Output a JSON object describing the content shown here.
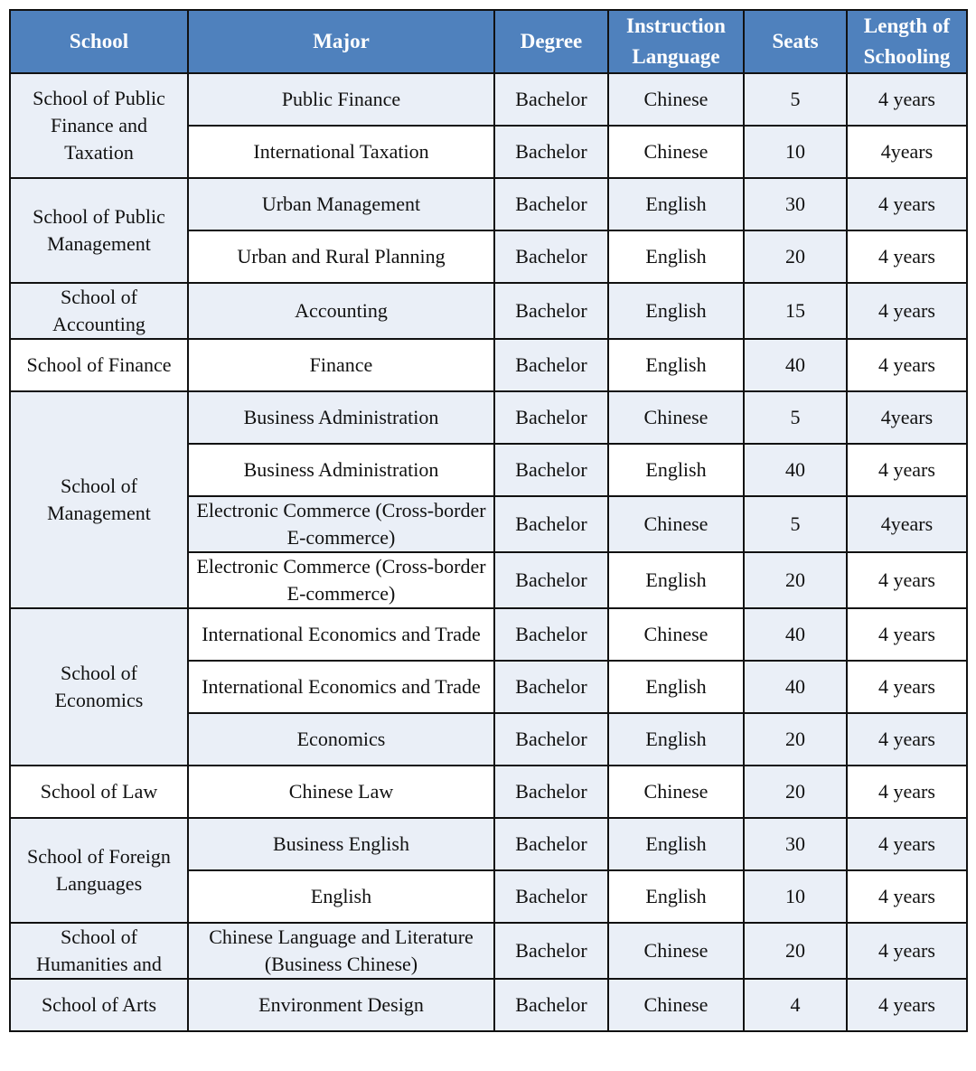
{
  "table": {
    "headers": [
      "School",
      "Major",
      "Degree",
      "Instruction Language",
      "Seats",
      "Length of Schooling"
    ],
    "groups": [
      {
        "school": "School of Public Finance and Taxation",
        "rows": [
          {
            "major": "Public Finance",
            "degree": "Bachelor",
            "language": "Chinese",
            "seats": "5",
            "length": "4 years"
          },
          {
            "major": "International Taxation",
            "degree": "Bachelor",
            "language": "Chinese",
            "seats": "10",
            "length": "4years"
          }
        ]
      },
      {
        "school": "School of Public Management",
        "rows": [
          {
            "major": "Urban Management",
            "degree": "Bachelor",
            "language": "English",
            "seats": "30",
            "length": "4 years"
          },
          {
            "major": "Urban and Rural Planning",
            "degree": "Bachelor",
            "language": "English",
            "seats": "20",
            "length": "4 years"
          }
        ]
      },
      {
        "school": "School of Accounting",
        "rows": [
          {
            "major": "Accounting",
            "degree": "Bachelor",
            "language": "English",
            "seats": "15",
            "length": "4 years"
          }
        ]
      },
      {
        "school": "School of Finance",
        "rows": [
          {
            "major": "Finance",
            "degree": "Bachelor",
            "language": "English",
            "seats": "40",
            "length": "4 years"
          }
        ]
      },
      {
        "school": "School of Management",
        "rows": [
          {
            "major": "Business Administration",
            "degree": "Bachelor",
            "language": "Chinese",
            "seats": "5",
            "length": "4years"
          },
          {
            "major": "Business Administration",
            "degree": "Bachelor",
            "language": "English",
            "seats": "40",
            "length": "4 years"
          },
          {
            "major": "Electronic Commerce (Cross-border E-commerce)",
            "degree": "Bachelor",
            "language": "Chinese",
            "seats": "5",
            "length": "4years"
          },
          {
            "major": "Electronic Commerce (Cross-border E-commerce)",
            "degree": "Bachelor",
            "language": "English",
            "seats": "20",
            "length": "4 years"
          }
        ]
      },
      {
        "school": "School of Economics",
        "rows": [
          {
            "major": "International Economics and Trade",
            "degree": "Bachelor",
            "language": "Chinese",
            "seats": "40",
            "length": "4 years"
          },
          {
            "major": "International Economics and Trade",
            "degree": "Bachelor",
            "language": "English",
            "seats": "40",
            "length": "4 years"
          },
          {
            "major": "Economics",
            "degree": "Bachelor",
            "language": "English",
            "seats": "20",
            "length": "4 years"
          }
        ]
      },
      {
        "school": "School of Law",
        "rows": [
          {
            "major": "Chinese Law",
            "degree": "Bachelor",
            "language": "Chinese",
            "seats": "20",
            "length": "4 years"
          }
        ]
      },
      {
        "school": "School of Foreign Languages",
        "rows": [
          {
            "major": "Business English",
            "degree": "Bachelor",
            "language": "English",
            "seats": "30",
            "length": "4 years"
          },
          {
            "major": "English",
            "degree": "Bachelor",
            "language": "English",
            "seats": "10",
            "length": "4 years"
          }
        ]
      },
      {
        "school": "School of Humanities and",
        "rows": [
          {
            "major": "Chinese Language and Literature (Business Chinese)",
            "degree": "Bachelor",
            "language": "Chinese",
            "seats": "20",
            "length": "4 years"
          }
        ]
      },
      {
        "school": "School of Arts",
        "rows": [
          {
            "major": "Environment Design",
            "degree": "Bachelor",
            "language": "Chinese",
            "seats": "4",
            "length": "4 years"
          }
        ]
      }
    ]
  },
  "colors": {
    "header_bg": "#4f81bd",
    "row_shade": "#eaeff7"
  }
}
